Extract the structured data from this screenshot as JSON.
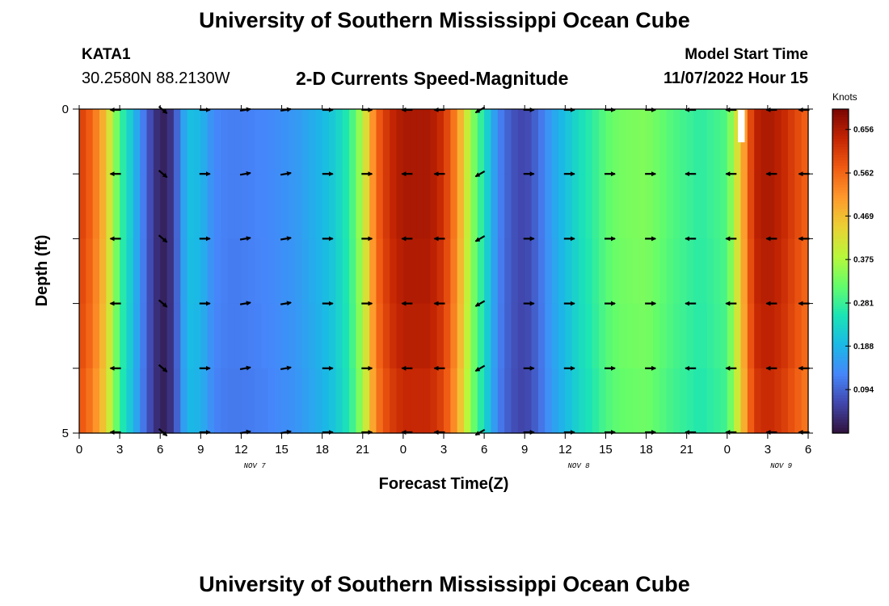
{
  "header": {
    "title": "University of Southern Mississippi Ocean Cube",
    "station": "KATA1",
    "coordinates": "30.2580N  88.2130W",
    "subtitle": "2-D Currents Speed-Magnitude",
    "model_start_label": "Model Start Time",
    "model_start_value": "11/07/2022 Hour 15"
  },
  "footer": {
    "title": "University of Southern Mississippi Ocean Cube"
  },
  "colors": {
    "colormap": [
      "#30123b",
      "#4146ac",
      "#4686fb",
      "#1ab9e6",
      "#1be5b5",
      "#64fd6a",
      "#b9f73a",
      "#ebd134",
      "#fe992c",
      "#f05b12",
      "#c42503",
      "#7a0403"
    ]
  },
  "chart_data": {
    "type": "heatmap",
    "xlabel": "Forecast Time(Z)",
    "ylabel": "Depth (ft)",
    "y_ticks": [
      "0",
      "5"
    ],
    "y_range": [
      0,
      5
    ],
    "x_tick_labels": [
      "0",
      "3",
      "6",
      "9",
      "12",
      "15",
      "18",
      "21",
      "0",
      "3",
      "6",
      "9",
      "12",
      "15",
      "18",
      "21",
      "0",
      "3",
      "6"
    ],
    "x_day_labels": [
      {
        "text": "NOV 7",
        "hours_from_start": 13
      },
      {
        "text": "NOV 8",
        "hours_from_start": 37
      },
      {
        "text": "NOV 9",
        "hours_from_start": 52
      }
    ],
    "x_range_hours": [
      0,
      54
    ],
    "colorbar": {
      "label": "Knots",
      "ticks": [
        "0.656",
        "0.562",
        "0.469",
        "0.375",
        "0.281",
        "0.188",
        "0.094"
      ],
      "range": [
        0,
        0.7
      ]
    },
    "speed_profile": {
      "hours": [
        0,
        1,
        2,
        3,
        4,
        5,
        5.5,
        6,
        6.5,
        7,
        8,
        9,
        10,
        11,
        12,
        14,
        16,
        18,
        19,
        20,
        21,
        22,
        23,
        24,
        26,
        27,
        28,
        29,
        30,
        31,
        32,
        33,
        34,
        35,
        36,
        37,
        38,
        39,
        40,
        42,
        44,
        46,
        48,
        49,
        50,
        51,
        52,
        54
      ],
      "knots": [
        0.61,
        0.56,
        0.46,
        0.29,
        0.2,
        0.09,
        0.05,
        0.02,
        0.02,
        0.06,
        0.2,
        0.19,
        0.13,
        0.12,
        0.12,
        0.13,
        0.15,
        0.19,
        0.22,
        0.27,
        0.38,
        0.56,
        0.63,
        0.66,
        0.66,
        0.62,
        0.52,
        0.36,
        0.25,
        0.13,
        0.08,
        0.06,
        0.1,
        0.16,
        0.2,
        0.24,
        0.27,
        0.31,
        0.33,
        0.34,
        0.3,
        0.27,
        0.3,
        0.46,
        0.64,
        0.66,
        0.64,
        0.56
      ]
    },
    "depth_factors": [
      1.0,
      1.0,
      0.99,
      0.98,
      0.96
    ],
    "arrows": {
      "hours": [
        2.7,
        6.2,
        9.3,
        12.3,
        15.3,
        18.4,
        21.3,
        24.3,
        26.7,
        29.7,
        33.3,
        36.3,
        39.3,
        42.3,
        45.3,
        48.3,
        51.3,
        53.7
      ],
      "direction_deg": [
        180,
        320,
        0,
        10,
        10,
        0,
        0,
        180,
        180,
        210,
        0,
        0,
        0,
        0,
        180,
        180,
        180,
        180
      ]
    },
    "missing_cell": {
      "hours": [
        48.8,
        49.3
      ],
      "depth_ft": [
        0,
        0.5
      ]
    }
  }
}
